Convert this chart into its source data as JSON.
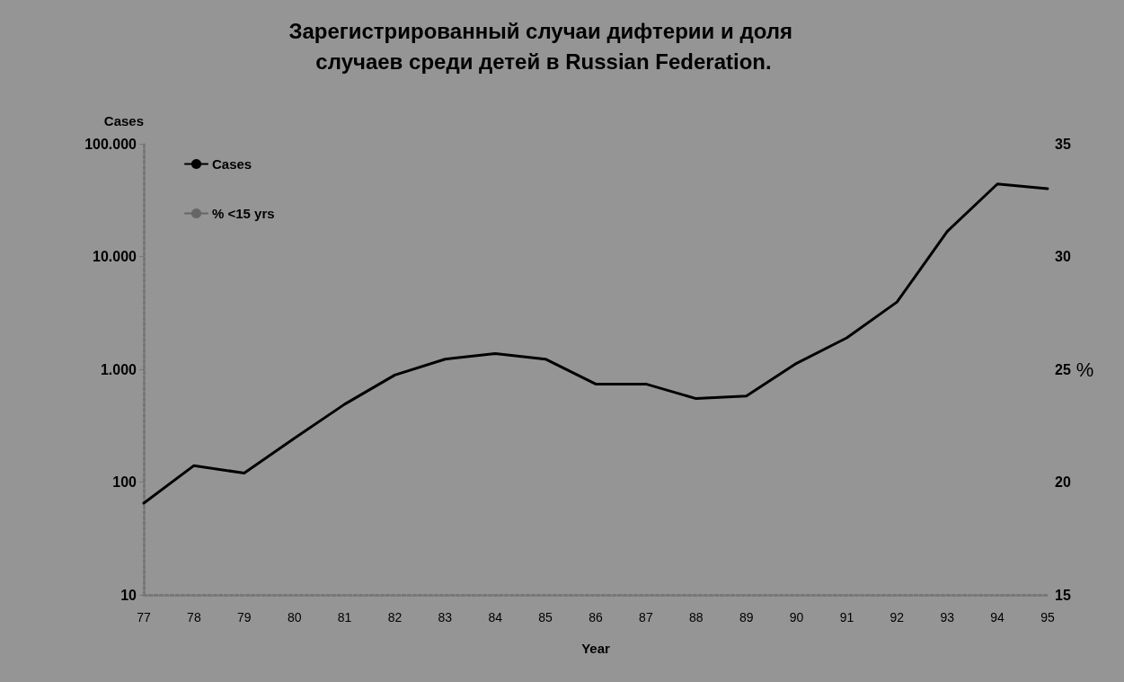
{
  "chart_data": {
    "type": "line",
    "title": "Зарегистрированный случаи дифтерии и доля случаев среди детей в Russian Federation.",
    "xlabel": "Year",
    "ylabel": "Cases",
    "y2label": "%",
    "categories": [
      "77",
      "78",
      "79",
      "80",
      "81",
      "82",
      "83",
      "84",
      "85",
      "86",
      "87",
      "88",
      "89",
      "90",
      "91",
      "92",
      "93",
      "94",
      "95"
    ],
    "series": [
      {
        "name": "Cases",
        "color": "#000000",
        "values": [
          65,
          140,
          120,
          245,
          490,
          890,
          1230,
          1380,
          1230,
          740,
          740,
          550,
          580,
          1130,
          1900,
          3950,
          16700,
          44000,
          40000
        ]
      },
      {
        "name": "% <15 yrs",
        "color": "#666666",
        "values": [
          null,
          null,
          null,
          null,
          null,
          null,
          null,
          null,
          null,
          null,
          null,
          null,
          null,
          null,
          null,
          null,
          null,
          null,
          null
        ]
      }
    ],
    "log": "y",
    "ylim": [
      10,
      100000
    ],
    "yticks": [
      {
        "value": 10,
        "label": "10"
      },
      {
        "value": 100,
        "label": "100"
      },
      {
        "value": 1000,
        "label": "1.000"
      },
      {
        "value": 10000,
        "label": "10.000"
      },
      {
        "value": 100000,
        "label": "100.000"
      }
    ],
    "y2lim": [
      15,
      35
    ],
    "y2ticks": [
      15,
      20,
      25,
      30,
      35
    ],
    "legend": "top left",
    "grid": false,
    "marker": "none",
    "line_style": "solid"
  }
}
